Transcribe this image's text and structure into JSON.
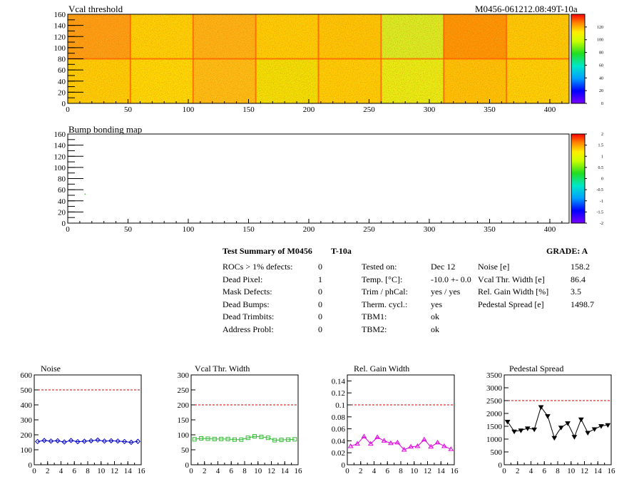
{
  "chart_data": [
    {
      "type": "heatmap",
      "title": "Vcal threshold",
      "label_right": "M0456-061212.08:49T-10a",
      "xlim": [
        0,
        416
      ],
      "ylim": [
        0,
        160
      ],
      "xticks": [
        0,
        50,
        100,
        150,
        200,
        250,
        300,
        350,
        400
      ],
      "yticks": [
        0,
        20,
        40,
        60,
        80,
        100,
        120,
        140,
        160
      ],
      "zticks": [
        0,
        20,
        40,
        60,
        80,
        100,
        120
      ],
      "grid": false,
      "legend": "right color palette"
    },
    {
      "type": "heatmap",
      "title": "Bump bonding map",
      "xlim": [
        0,
        416
      ],
      "ylim": [
        0,
        160
      ],
      "xticks": [
        0,
        50,
        100,
        150,
        200,
        250,
        300,
        350,
        400
      ],
      "yticks": [
        0,
        20,
        40,
        60,
        80,
        100,
        120,
        140,
        160
      ],
      "zticks": [
        "-2",
        "-1.5",
        "-1",
        "-0.5",
        "0",
        "0.5",
        "1",
        "1.5",
        "2"
      ],
      "grid": false,
      "legend": "right color palette"
    },
    {
      "type": "line",
      "title": "Noise",
      "x": [
        0,
        1,
        2,
        3,
        4,
        5,
        6,
        7,
        8,
        9,
        10,
        11,
        12,
        13,
        14,
        15
      ],
      "series": [
        {
          "values": [
            155,
            162,
            158,
            160,
            152,
            162,
            154,
            157,
            160,
            165,
            158,
            160,
            158,
            155,
            150,
            156
          ]
        }
      ],
      "reference": 500,
      "xlim": [
        0,
        16
      ],
      "ylim": [
        0,
        600
      ],
      "xticks": [
        0,
        2,
        4,
        6,
        8,
        10,
        12,
        14,
        16
      ],
      "yticks": [
        0,
        100,
        200,
        300,
        400,
        500,
        600
      ],
      "color": "#0000cc",
      "marker": "diamond"
    },
    {
      "type": "line",
      "title": "Vcal Thr. Width",
      "x": [
        0,
        1,
        2,
        3,
        4,
        5,
        6,
        7,
        8,
        9,
        10,
        11,
        12,
        13,
        14,
        15
      ],
      "series": [
        {
          "values": [
            85,
            88,
            87,
            86,
            86,
            86,
            84,
            84,
            90,
            95,
            93,
            90,
            82,
            83,
            84,
            85
          ]
        }
      ],
      "reference": 200,
      "xlim": [
        0,
        16
      ],
      "ylim": [
        0,
        300
      ],
      "xticks": [
        0,
        2,
        4,
        6,
        8,
        10,
        12,
        14,
        16
      ],
      "yticks": [
        0,
        50,
        100,
        150,
        200,
        250,
        300
      ],
      "color": "#33bb33",
      "marker": "square"
    },
    {
      "type": "line",
      "title": "Rel. Gain Width",
      "x": [
        0,
        1,
        2,
        3,
        4,
        5,
        6,
        7,
        8,
        9,
        10,
        11,
        12,
        13,
        14,
        15
      ],
      "series": [
        {
          "values": [
            0.031,
            0.035,
            0.047,
            0.035,
            0.046,
            0.04,
            0.036,
            0.037,
            0.025,
            0.03,
            0.031,
            0.042,
            0.03,
            0.037,
            0.031,
            0.026
          ]
        }
      ],
      "reference": 0.1,
      "xlim": [
        0,
        16
      ],
      "ylim": [
        0,
        0.15
      ],
      "xticks": [
        0,
        2,
        4,
        6,
        8,
        10,
        12,
        14,
        16
      ],
      "yticks": [
        "0",
        "0.02",
        "0.04",
        "0.06",
        "0.08",
        "0.1",
        "0.12",
        "0.14"
      ],
      "color": "#dd00dd",
      "marker": "triangle"
    },
    {
      "type": "line",
      "title": "Pedestal Spread",
      "x": [
        0,
        1,
        2,
        3,
        4,
        5,
        6,
        7,
        8,
        9,
        10,
        11,
        12,
        13,
        14,
        15
      ],
      "series": [
        {
          "values": [
            1680,
            1300,
            1340,
            1420,
            1380,
            2250,
            1900,
            1050,
            1450,
            1620,
            1090,
            1770,
            1250,
            1390,
            1510,
            1550
          ]
        }
      ],
      "reference": 2500,
      "xlim": [
        0,
        16
      ],
      "ylim": [
        0,
        3500
      ],
      "xticks": [
        0,
        2,
        4,
        6,
        8,
        10,
        12,
        14,
        16
      ],
      "yticks": [
        0,
        500,
        1000,
        1500,
        2000,
        2500,
        3000,
        3500
      ],
      "color": "#000000",
      "marker": "triangle-down"
    }
  ],
  "summary": {
    "title": "Test Summary of M0456",
    "temp_label": "T-10a",
    "grade": "GRADE:  A",
    "col1": [
      {
        "label": "ROCs > 1% defects:",
        "value": "0"
      },
      {
        "label": "Dead Pixel:",
        "value": "1"
      },
      {
        "label": "Mask Defects:",
        "value": "0"
      },
      {
        "label": "Dead Bumps:",
        "value": "0"
      },
      {
        "label": "Dead Trimbits:",
        "value": "0"
      },
      {
        "label": "Address Probl:",
        "value": "0"
      }
    ],
    "col2": [
      {
        "label": "Tested on:",
        "value": "Dec 12"
      },
      {
        "label": "Temp. [°C]:",
        "value": "-10.0 +- 0.0"
      },
      {
        "label": "Trim / phCal:",
        "value": "yes / yes"
      },
      {
        "label": "Therm. cycl.:",
        "value": "yes"
      },
      {
        "label": "TBM1:",
        "value": "ok"
      },
      {
        "label": "TBM2:",
        "value": "ok"
      }
    ],
    "col3": [
      {
        "label": "Noise [e]",
        "value": "158.2"
      },
      {
        "label": "Vcal Thr. Width [e]",
        "value": "86.4"
      },
      {
        "label": "Rel. Gain Width [%]",
        "value": "3.5"
      },
      {
        "label": "Pedestal Spread [e]",
        "value": "1498.7"
      }
    ]
  }
}
